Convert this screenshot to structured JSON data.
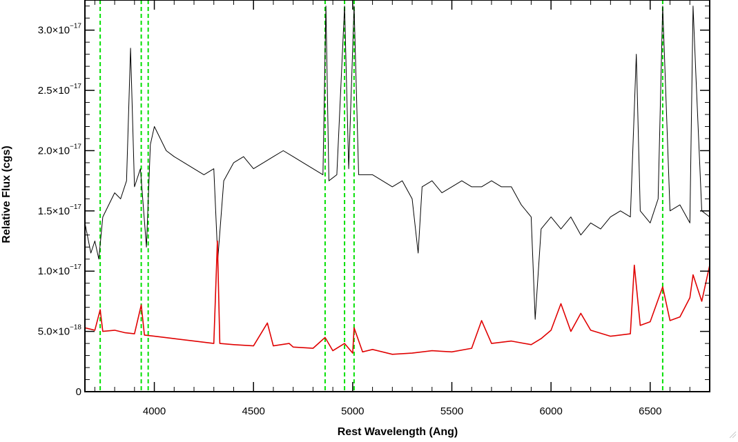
{
  "chart_data": {
    "type": "line",
    "title": "",
    "xlabel": "Rest Wavelength (Ang)",
    "ylabel": "Relative Flux (cgs)",
    "xlim": [
      3650,
      6800
    ],
    "ylim": [
      0,
      3.25e-17
    ],
    "x_ticks": [
      {
        "value": 4000,
        "label": "4000"
      },
      {
        "value": 4500,
        "label": "4500"
      },
      {
        "value": 5000,
        "label": "5000"
      },
      {
        "value": 5500,
        "label": "5500"
      },
      {
        "value": 6000,
        "label": "6000"
      },
      {
        "value": 6500,
        "label": "6500"
      }
    ],
    "y_ticks": [
      {
        "value": 0,
        "mantissa": "0",
        "base": "",
        "exponent": ""
      },
      {
        "value": 5e-18,
        "mantissa": "5.0",
        "base": "×10",
        "exponent": "−18"
      },
      {
        "value": 1e-17,
        "mantissa": "1.0",
        "base": "×10",
        "exponent": "−17"
      },
      {
        "value": 1.5e-17,
        "mantissa": "1.5",
        "base": "×10",
        "exponent": "−17"
      },
      {
        "value": 2e-17,
        "mantissa": "2.0",
        "base": "×10",
        "exponent": "−17"
      },
      {
        "value": 2.5e-17,
        "mantissa": "2.5",
        "base": "×10",
        "exponent": "−17"
      },
      {
        "value": 3e-17,
        "mantissa": "3.0",
        "base": "×10",
        "exponent": "−17"
      }
    ],
    "series": [
      {
        "color": "#000000",
        "points": [
          [
            3650,
            1.4e-17
          ],
          [
            3680,
            1.15e-17
          ],
          [
            3700,
            1.25e-17
          ],
          [
            3720,
            1.1e-17
          ],
          [
            3740,
            1.45e-17
          ],
          [
            3770,
            1.55e-17
          ],
          [
            3800,
            1.65e-17
          ],
          [
            3830,
            1.6e-17
          ],
          [
            3860,
            1.75e-17
          ],
          [
            3880,
            2.85e-17
          ],
          [
            3900,
            1.7e-17
          ],
          [
            3930,
            1.85e-17
          ],
          [
            3960,
            1.2e-17
          ],
          [
            3980,
            2.05e-17
          ],
          [
            4000,
            2.2e-17
          ],
          [
            4030,
            2.1e-17
          ],
          [
            4060,
            2e-17
          ],
          [
            4100,
            1.95e-17
          ],
          [
            4150,
            1.9e-17
          ],
          [
            4200,
            1.85e-17
          ],
          [
            4250,
            1.8e-17
          ],
          [
            4300,
            1.85e-17
          ],
          [
            4320,
            1.1e-17
          ],
          [
            4350,
            1.75e-17
          ],
          [
            4400,
            1.9e-17
          ],
          [
            4450,
            1.95e-17
          ],
          [
            4500,
            1.85e-17
          ],
          [
            4550,
            1.9e-17
          ],
          [
            4600,
            1.95e-17
          ],
          [
            4650,
            2e-17
          ],
          [
            4700,
            1.95e-17
          ],
          [
            4750,
            1.9e-17
          ],
          [
            4800,
            1.85e-17
          ],
          [
            4850,
            1.8e-17
          ],
          [
            4865,
            3.2e-17
          ],
          [
            4880,
            1.75e-17
          ],
          [
            4920,
            1.8e-17
          ],
          [
            4959,
            3.2e-17
          ],
          [
            4980,
            1.85e-17
          ],
          [
            5007,
            3.2e-17
          ],
          [
            5030,
            1.8e-17
          ],
          [
            5100,
            1.8e-17
          ],
          [
            5150,
            1.75e-17
          ],
          [
            5200,
            1.7e-17
          ],
          [
            5250,
            1.75e-17
          ],
          [
            5300,
            1.6e-17
          ],
          [
            5330,
            1.15e-17
          ],
          [
            5350,
            1.7e-17
          ],
          [
            5400,
            1.75e-17
          ],
          [
            5450,
            1.65e-17
          ],
          [
            5500,
            1.7e-17
          ],
          [
            5550,
            1.75e-17
          ],
          [
            5600,
            1.7e-17
          ],
          [
            5650,
            1.7e-17
          ],
          [
            5700,
            1.75e-17
          ],
          [
            5750,
            1.7e-17
          ],
          [
            5800,
            1.7e-17
          ],
          [
            5850,
            1.55e-17
          ],
          [
            5900,
            1.45e-17
          ],
          [
            5920,
            6e-18
          ],
          [
            5950,
            1.35e-17
          ],
          [
            6000,
            1.45e-17
          ],
          [
            6050,
            1.35e-17
          ],
          [
            6100,
            1.45e-17
          ],
          [
            6150,
            1.3e-17
          ],
          [
            6200,
            1.4e-17
          ],
          [
            6250,
            1.35e-17
          ],
          [
            6300,
            1.45e-17
          ],
          [
            6350,
            1.5e-17
          ],
          [
            6400,
            1.45e-17
          ],
          [
            6430,
            2.8e-17
          ],
          [
            6450,
            1.5e-17
          ],
          [
            6500,
            1.4e-17
          ],
          [
            6540,
            1.6e-17
          ],
          [
            6563,
            3.2e-17
          ],
          [
            6600,
            1.5e-17
          ],
          [
            6650,
            1.55e-17
          ],
          [
            6700,
            1.4e-17
          ],
          [
            6716,
            3.2e-17
          ],
          [
            6731,
            2.6e-17
          ],
          [
            6760,
            1.5e-17
          ],
          [
            6800,
            1.45e-17
          ]
        ]
      },
      {
        "color": "#e00000",
        "points": [
          [
            3650,
            5.3e-18
          ],
          [
            3700,
            5.1e-18
          ],
          [
            3727,
            6.8e-18
          ],
          [
            3740,
            5e-18
          ],
          [
            3800,
            5.1e-18
          ],
          [
            3850,
            4.9e-18
          ],
          [
            3900,
            4.8e-18
          ],
          [
            3934,
            7.2e-18
          ],
          [
            3950,
            4.7e-18
          ],
          [
            4000,
            4.6e-18
          ],
          [
            4100,
            4.4e-18
          ],
          [
            4200,
            4.2e-18
          ],
          [
            4300,
            4e-18
          ],
          [
            4318,
            1.25e-17
          ],
          [
            4330,
            4e-18
          ],
          [
            4400,
            3.9e-18
          ],
          [
            4500,
            3.8e-18
          ],
          [
            4570,
            5.7e-18
          ],
          [
            4600,
            3.8e-18
          ],
          [
            4680,
            4e-18
          ],
          [
            4700,
            3.7e-18
          ],
          [
            4800,
            3.6e-18
          ],
          [
            4861,
            4.5e-18
          ],
          [
            4900,
            3.4e-18
          ],
          [
            4959,
            4e-18
          ],
          [
            5000,
            3.2e-18
          ],
          [
            5007,
            5.3e-18
          ],
          [
            5050,
            3.3e-18
          ],
          [
            5100,
            3.5e-18
          ],
          [
            5200,
            3.1e-18
          ],
          [
            5300,
            3.2e-18
          ],
          [
            5400,
            3.4e-18
          ],
          [
            5500,
            3.3e-18
          ],
          [
            5600,
            3.6e-18
          ],
          [
            5650,
            5.9e-18
          ],
          [
            5700,
            4e-18
          ],
          [
            5800,
            4.2e-18
          ],
          [
            5900,
            3.9e-18
          ],
          [
            5950,
            4.4e-18
          ],
          [
            6000,
            5.1e-18
          ],
          [
            6050,
            7.3e-18
          ],
          [
            6100,
            5e-18
          ],
          [
            6150,
            6.5e-18
          ],
          [
            6200,
            5.1e-18
          ],
          [
            6300,
            4.6e-18
          ],
          [
            6400,
            4.8e-18
          ],
          [
            6420,
            1.05e-17
          ],
          [
            6450,
            5.5e-18
          ],
          [
            6500,
            5.8e-18
          ],
          [
            6563,
            8.7e-18
          ],
          [
            6600,
            5.9e-18
          ],
          [
            6650,
            6.2e-18
          ],
          [
            6700,
            7.8e-18
          ],
          [
            6716,
            9.7e-18
          ],
          [
            6760,
            7.5e-18
          ],
          [
            6800,
            1.05e-17
          ]
        ]
      }
    ],
    "reference_lines": {
      "color": "#00e000",
      "style": "dashed",
      "x": [
        3727,
        3934,
        3969,
        4861,
        4959,
        5007,
        6563
      ]
    },
    "grid": false,
    "legend": "none"
  }
}
